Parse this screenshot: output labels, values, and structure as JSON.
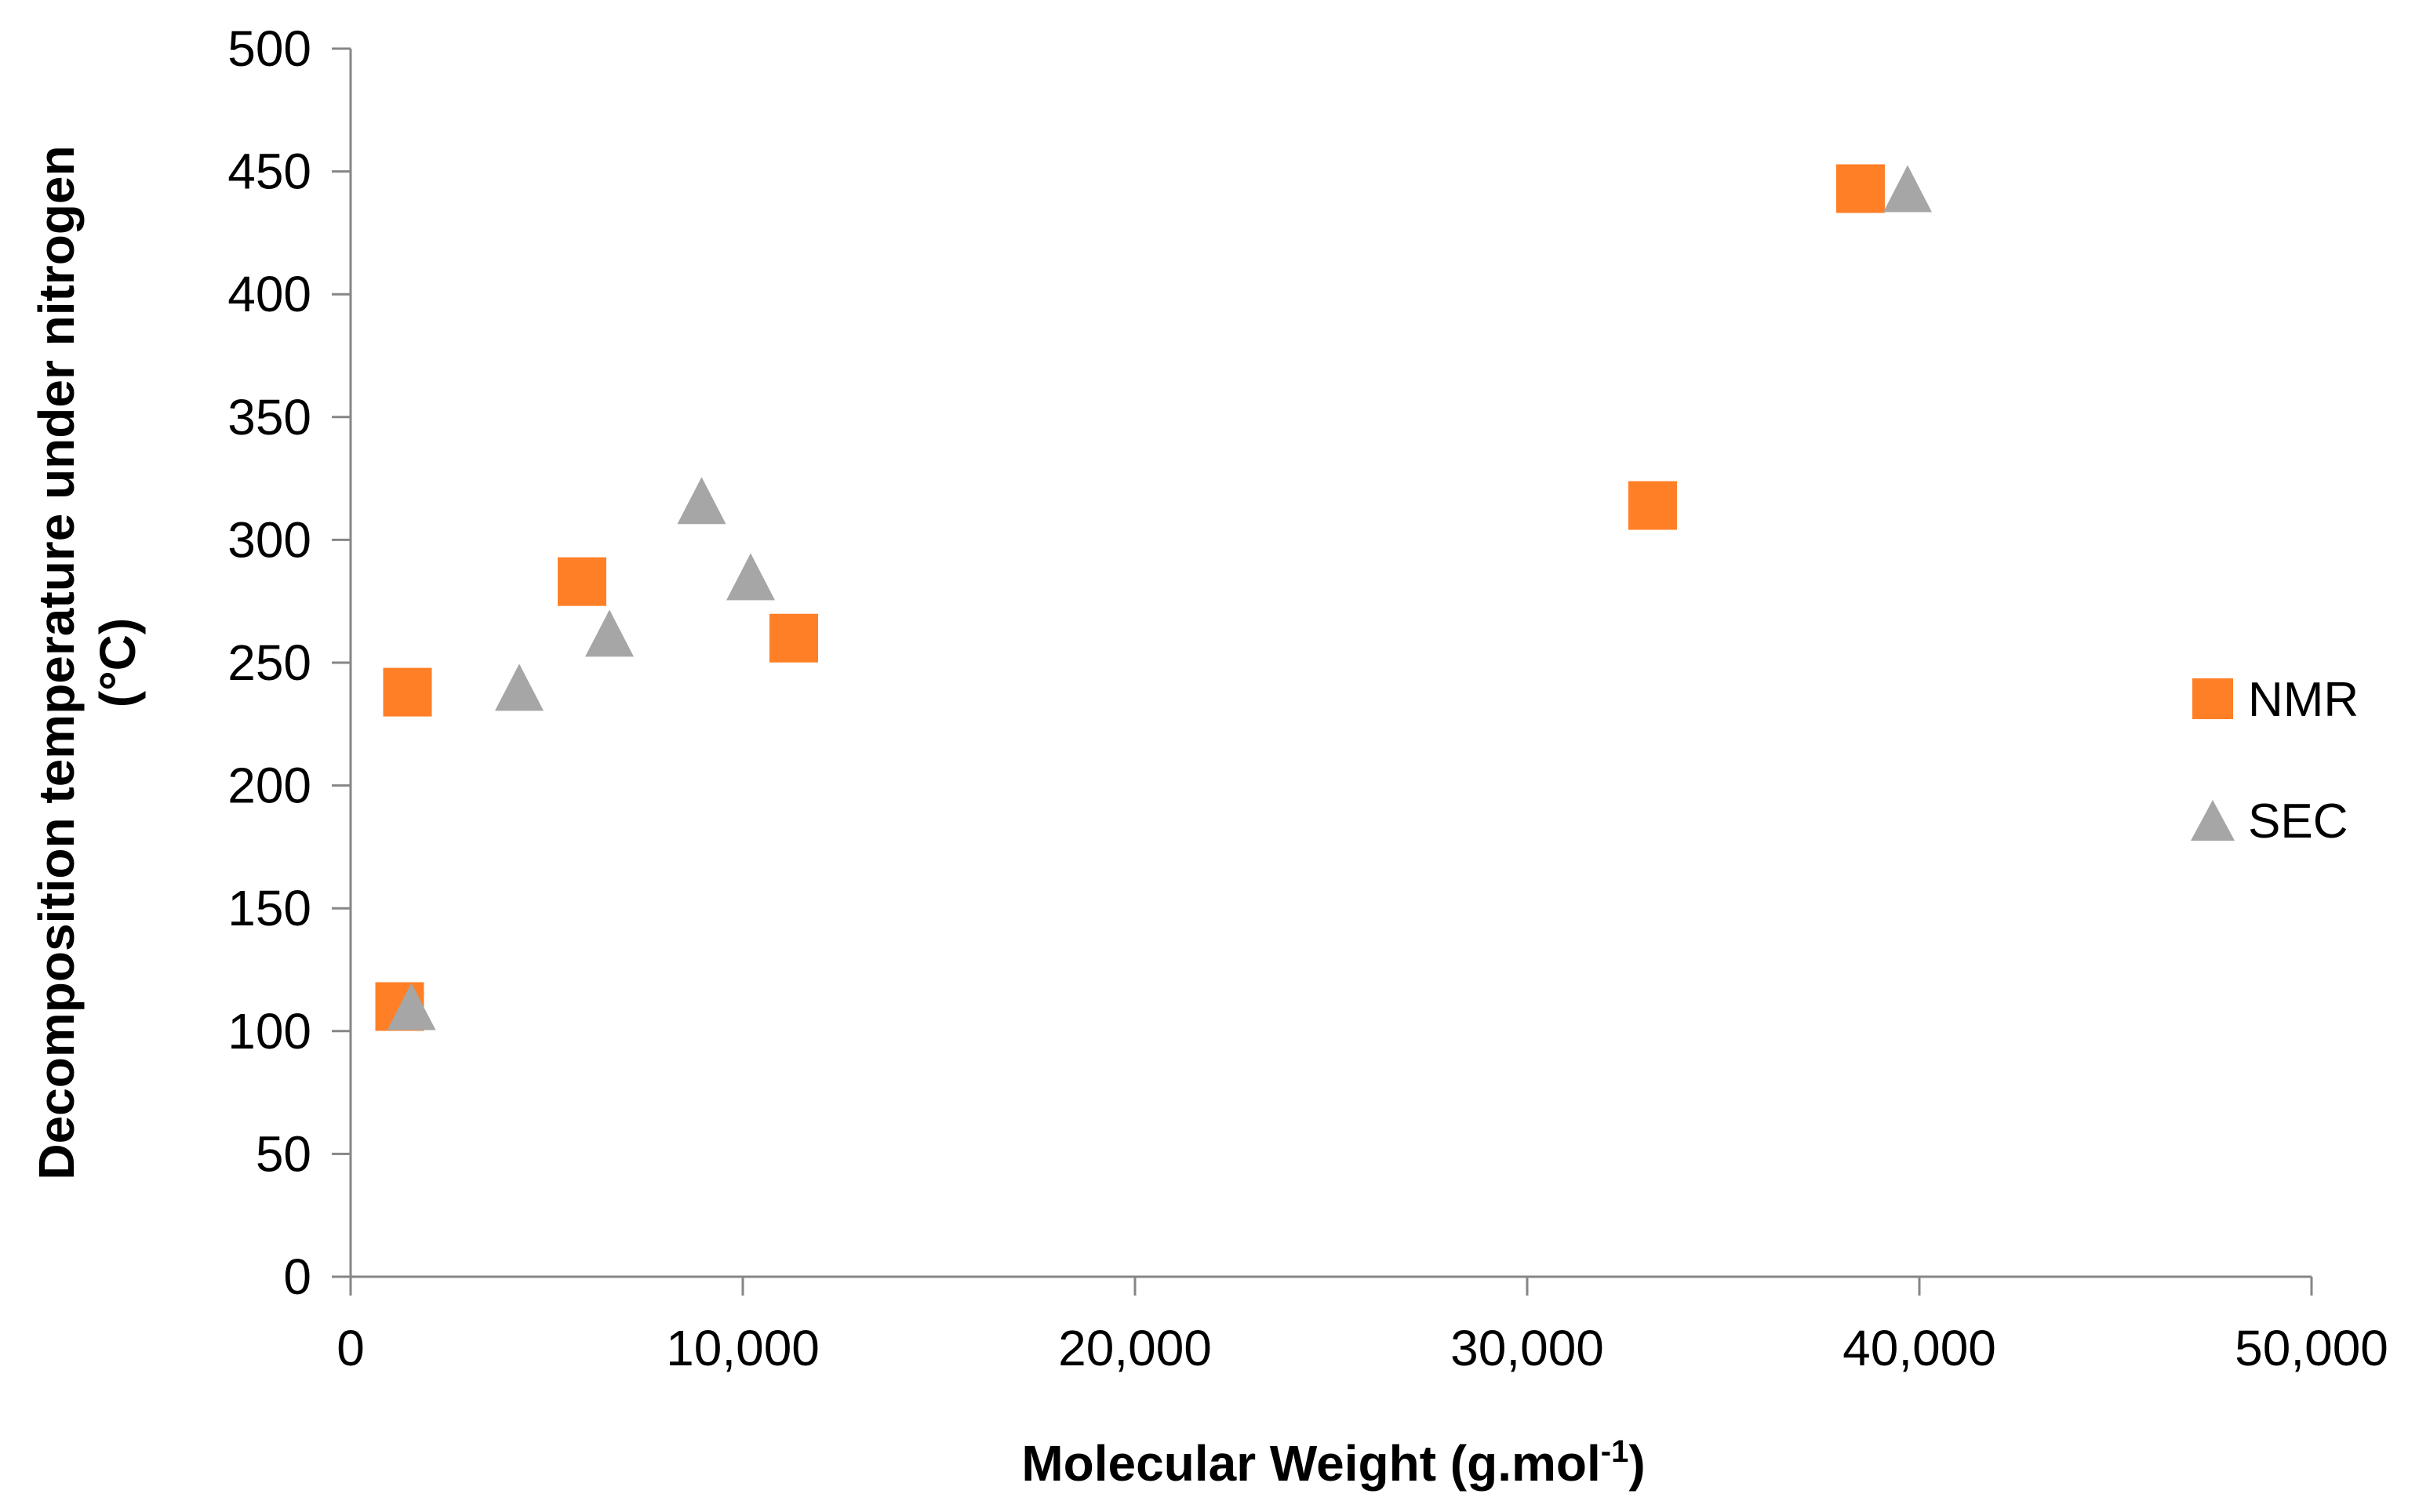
{
  "chart_data": {
    "type": "scatter",
    "title": "",
    "xlabel": {
      "main": "Molecular Weight (g.mol",
      "sup": "-1",
      "end": ")"
    },
    "ylabel": {
      "line1": "Decomposition temperature under nitrogen",
      "line2": "(°C)"
    },
    "xlim": [
      0,
      50000
    ],
    "ylim": [
      0,
      500
    ],
    "x_ticks": [
      0,
      10000,
      20000,
      30000,
      40000,
      50000
    ],
    "x_tick_labels": [
      "0",
      "10,000",
      "20,000",
      "30,000",
      "40,000",
      "50,000"
    ],
    "y_ticks": [
      0,
      50,
      100,
      150,
      200,
      250,
      300,
      350,
      400,
      450,
      500
    ],
    "y_tick_labels": [
      "0",
      "50",
      "100",
      "150",
      "200",
      "250",
      "300",
      "350",
      "400",
      "450",
      "500"
    ],
    "grid": false,
    "legend_position": "right",
    "series": [
      {
        "name": "NMR",
        "marker": "square",
        "color": "#ff7f27",
        "points": [
          {
            "x": 1250,
            "y": 110
          },
          {
            "x": 1450,
            "y": 238
          },
          {
            "x": 5900,
            "y": 283
          },
          {
            "x": 11300,
            "y": 260
          },
          {
            "x": 33200,
            "y": 314
          },
          {
            "x": 38500,
            "y": 443
          }
        ]
      },
      {
        "name": "SEC",
        "marker": "triangle",
        "color": "#a6a6a6",
        "points": [
          {
            "x": 1550,
            "y": 110
          },
          {
            "x": 4300,
            "y": 240
          },
          {
            "x": 6600,
            "y": 262
          },
          {
            "x": 8950,
            "y": 316
          },
          {
            "x": 10200,
            "y": 285
          },
          {
            "x": 39700,
            "y": 443
          }
        ]
      }
    ]
  }
}
